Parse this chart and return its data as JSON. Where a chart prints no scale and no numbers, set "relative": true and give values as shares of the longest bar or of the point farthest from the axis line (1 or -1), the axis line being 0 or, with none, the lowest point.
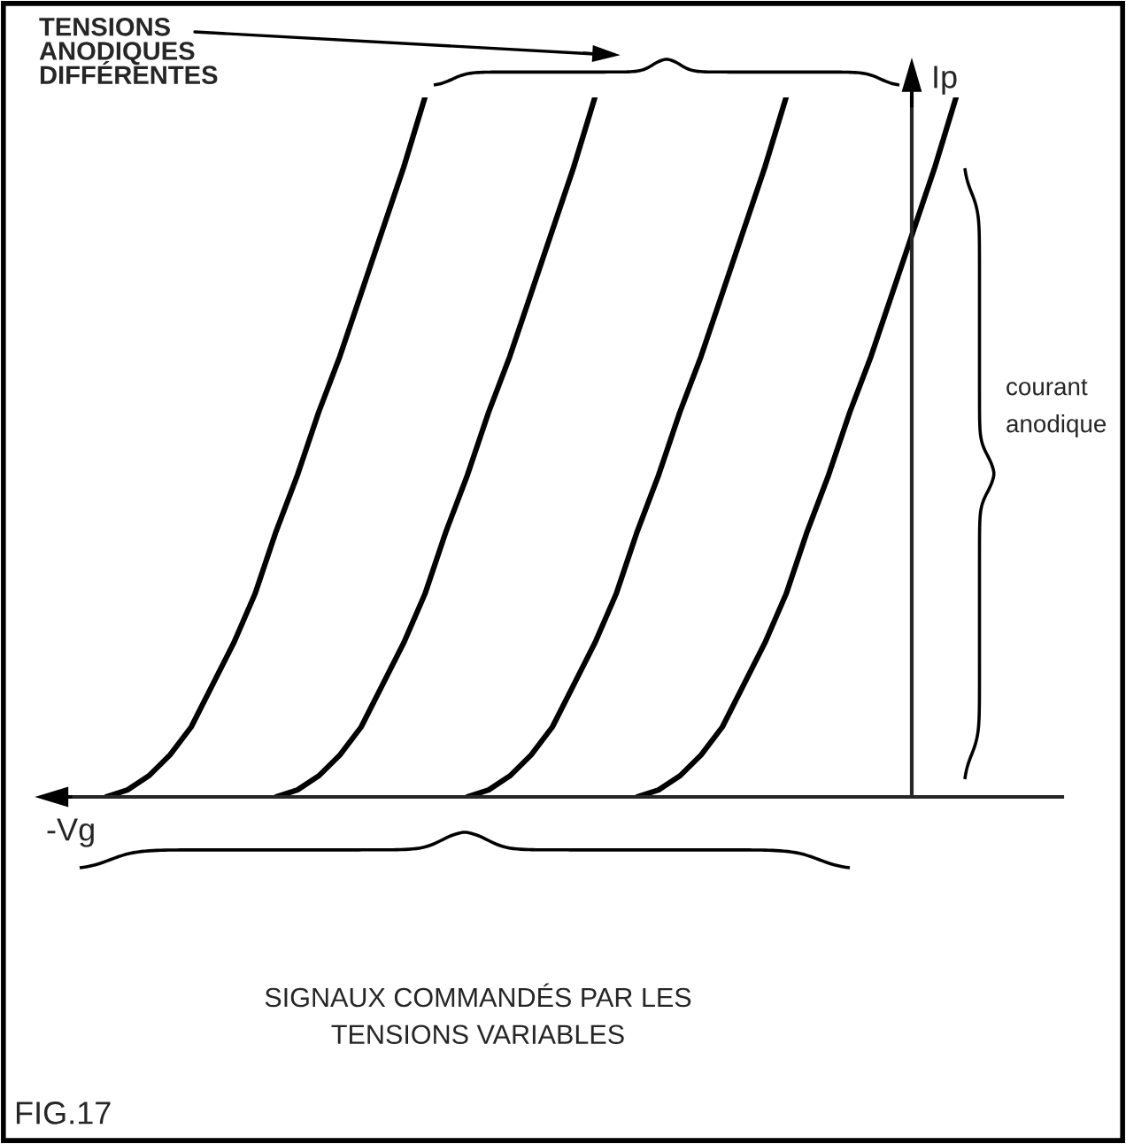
{
  "chart_data": {
    "type": "line",
    "relative": true,
    "xlabel": "-Vg",
    "ylabel": "Ip",
    "categories": [
      null,
      null,
      null,
      null,
      null,
      null,
      null,
      null,
      null,
      null,
      null,
      null,
      null,
      null,
      null,
      null,
      null,
      null,
      null,
      null,
      null,
      null,
      null,
      null,
      null,
      null,
      null,
      null,
      null,
      null,
      null,
      null,
      null,
      null,
      null,
      null,
      null,
      null,
      null,
      null,
      null,
      null,
      null,
      null,
      null,
      null,
      null,
      null,
      null
    ],
    "series": [
      {
        "color": "#000000",
        "values": [
          null,
          null,
          null,
          0,
          0.01,
          0.03,
          0.06,
          0.1,
          0.16,
          0.22,
          0.29,
          0.38,
          0.46,
          0.55,
          0.63,
          0.72,
          0.81,
          0.9,
          1.0,
          null,
          null,
          null,
          null,
          null,
          null,
          null,
          null,
          null,
          null,
          null,
          null,
          null,
          null,
          null,
          null,
          null,
          null,
          null,
          null,
          null,
          null,
          null,
          null,
          null,
          null,
          null,
          null,
          null,
          null
        ]
      },
      {
        "color": "#000000",
        "values": [
          null,
          null,
          null,
          null,
          null,
          null,
          null,
          null,
          null,
          null,
          null,
          0,
          0.01,
          0.03,
          0.06,
          0.1,
          0.16,
          0.22,
          0.29,
          0.38,
          0.46,
          0.55,
          0.63,
          0.72,
          0.81,
          0.9,
          1.0,
          null,
          null,
          null,
          null,
          null,
          null,
          null,
          null,
          null,
          null,
          null,
          null,
          null,
          null,
          null,
          null,
          null,
          null,
          null,
          null,
          null,
          null
        ]
      },
      {
        "color": "#000000",
        "values": [
          null,
          null,
          null,
          null,
          null,
          null,
          null,
          null,
          null,
          null,
          null,
          null,
          null,
          null,
          null,
          null,
          null,
          null,
          null,
          null,
          0,
          0.01,
          0.03,
          0.06,
          0.1,
          0.16,
          0.22,
          0.29,
          0.38,
          0.46,
          0.55,
          0.63,
          0.72,
          0.81,
          0.9,
          1.0,
          null,
          null,
          null,
          null,
          null,
          null,
          null,
          null,
          null,
          null,
          null,
          null,
          null
        ]
      },
      {
        "color": "#000000",
        "values": [
          null,
          null,
          null,
          null,
          null,
          null,
          null,
          null,
          null,
          null,
          null,
          null,
          null,
          null,
          null,
          null,
          null,
          null,
          null,
          null,
          null,
          null,
          null,
          null,
          null,
          null,
          null,
          null,
          0,
          0.01,
          0.03,
          0.06,
          0.1,
          0.16,
          0.22,
          0.29,
          0.38,
          0.46,
          0.55,
          0.63,
          0.72,
          0.81,
          0.9,
          1.0,
          null,
          null,
          null,
          null,
          null
        ]
      }
    ],
    "annotations": [
      "TENSIONS\nANODIQUES\nDIFFÉRENTES",
      "courant\nanodique",
      "SIGNAUX COMMANDÉS PAR LES\nTENSIONS VARIABLES",
      "FIG.17"
    ],
    "legend": false,
    "grid": false,
    "marker": "none",
    "line_style": "solid"
  }
}
